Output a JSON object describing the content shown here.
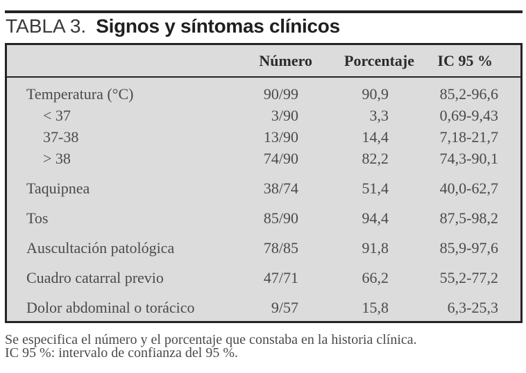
{
  "title": {
    "label": "TABLA 3.",
    "text": "Signos y síntomas clínicos"
  },
  "table": {
    "columns": [
      "",
      "Número",
      "Porcentaje",
      "IC 95 %"
    ],
    "rows": [
      {
        "label": "Temperatura (°C)",
        "indent": false,
        "numero": "90/99",
        "porcentaje": "90,9",
        "ic95": "85,2-96,6"
      },
      {
        "label": "< 37",
        "indent": true,
        "numero": "3/90",
        "porcentaje": "3,3",
        "ic95": "0,69-9,43"
      },
      {
        "label": "37-38",
        "indent": true,
        "numero": "13/90",
        "porcentaje": "14,4",
        "ic95": "7,18-21,7"
      },
      {
        "label": "> 38",
        "indent": true,
        "numero": "74/90",
        "porcentaje": "82,2",
        "ic95": "74,3-90,1"
      },
      {
        "label": "Taquipnea",
        "indent": false,
        "numero": "38/74",
        "porcentaje": "51,4",
        "ic95": "40,0-62,7"
      },
      {
        "label": "Tos",
        "indent": false,
        "numero": "85/90",
        "porcentaje": "94,4",
        "ic95": "87,5-98,2"
      },
      {
        "label": "Auscultación patológica",
        "indent": false,
        "numero": "78/85",
        "porcentaje": "91,8",
        "ic95": "85,9-97,6"
      },
      {
        "label": "Cuadro catarral previo",
        "indent": false,
        "numero": "47/71",
        "porcentaje": "66,2",
        "ic95": "55,2-77,2"
      },
      {
        "label": "Dolor abdominal o torácico",
        "indent": false,
        "numero": "9/57",
        "porcentaje": "15,8",
        "ic95": "6,3-25,3"
      }
    ]
  },
  "footnotes": [
    "Se especifica el número y el porcentaje que constaba en la historia clínica.",
    "IC 95 %: intervalo de confianza del 95 %."
  ],
  "colors": {
    "rule_and_border": "#242424",
    "table_background": "#dcdcdc",
    "body_text": "#4a4a4a",
    "header_text": "#2b2b2b"
  }
}
